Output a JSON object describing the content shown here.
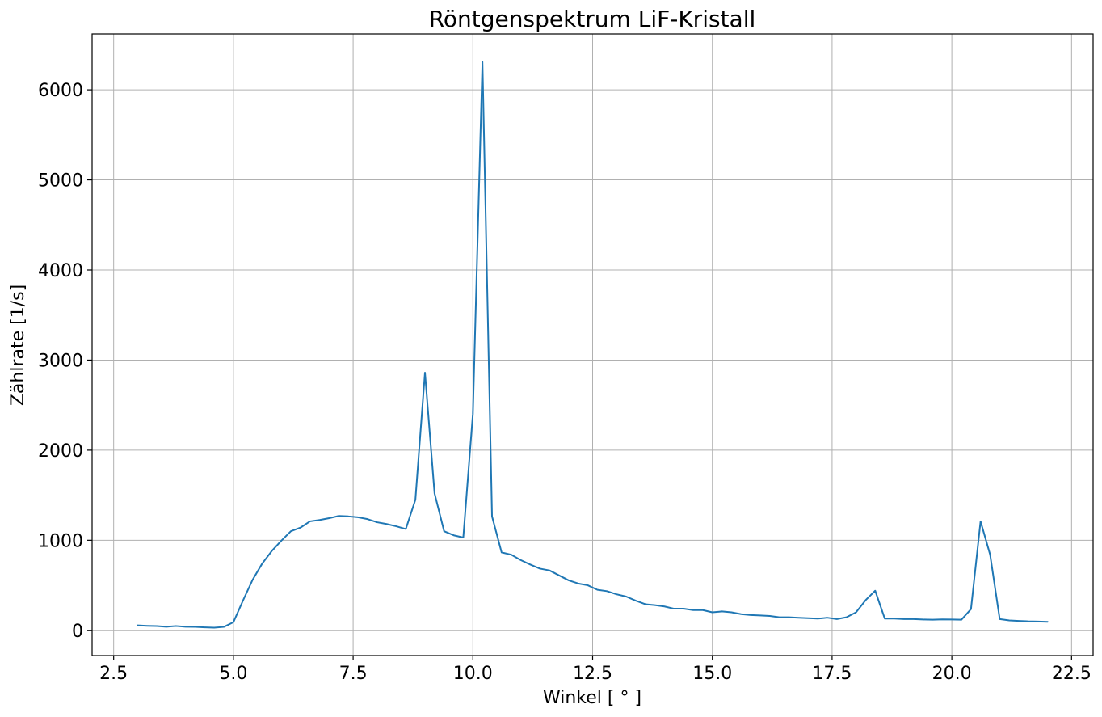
{
  "chart_data": {
    "type": "line",
    "title": "Röntgenspektrum LiF-Kristall",
    "xlabel": "Winkel [$^\\circ$]",
    "xlabel_display": "Winkel [ ° ]",
    "ylabel": "Zählrate [1/s]",
    "xlim": [
      2.05,
      22.95
    ],
    "ylim": [
      -280,
      6620
    ],
    "xticks": [
      2.5,
      5.0,
      7.5,
      10.0,
      12.5,
      15.0,
      17.5,
      20.0,
      22.5
    ],
    "xtick_labels": [
      "2.5",
      "5.0",
      "7.5",
      "10.0",
      "12.5",
      "15.0",
      "17.5",
      "20.0",
      "22.5"
    ],
    "yticks": [
      0,
      1000,
      2000,
      3000,
      4000,
      5000,
      6000
    ],
    "ytick_labels": [
      "0",
      "1000",
      "2000",
      "3000",
      "4000",
      "5000",
      "6000"
    ],
    "grid": true,
    "line_color": "#1f77b4",
    "series": [
      {
        "x": [
          3.0,
          3.2,
          3.4,
          3.6,
          3.8,
          4.0,
          4.2,
          4.4,
          4.6,
          4.8,
          5.0,
          5.2,
          5.4,
          5.6,
          5.8,
          6.0,
          6.2,
          6.4,
          6.6,
          6.8,
          7.0,
          7.2,
          7.4,
          7.6,
          7.8,
          8.0,
          8.2,
          8.4,
          8.6,
          8.8,
          9.0,
          9.2,
          9.4,
          9.6,
          9.8,
          10.0,
          10.2,
          10.4,
          10.6,
          10.8,
          11.0,
          11.2,
          11.4,
          11.6,
          11.8,
          12.0,
          12.2,
          12.4,
          12.6,
          12.8,
          13.0,
          13.2,
          13.4,
          13.6,
          13.8,
          14.0,
          14.2,
          14.4,
          14.6,
          14.8,
          15.0,
          15.2,
          15.4,
          15.6,
          15.8,
          16.0,
          16.2,
          16.4,
          16.6,
          16.8,
          17.0,
          17.2,
          17.4,
          17.6,
          17.8,
          18.0,
          18.2,
          18.4,
          18.6,
          18.8,
          19.0,
          19.2,
          19.4,
          19.6,
          19.8,
          20.0,
          20.2,
          20.4,
          20.6,
          20.8,
          21.0,
          21.2,
          21.4,
          21.6,
          21.8,
          22.0
        ],
        "y": [
          55,
          50,
          47,
          40,
          48,
          40,
          38,
          33,
          30,
          38,
          90,
          330,
          560,
          740,
          880,
          995,
          1100,
          1140,
          1210,
          1225,
          1245,
          1270,
          1265,
          1255,
          1235,
          1200,
          1180,
          1155,
          1125,
          1450,
          2860,
          1520,
          1100,
          1055,
          1030,
          2400,
          6310,
          1265,
          865,
          840,
          780,
          730,
          685,
          665,
          610,
          555,
          520,
          500,
          450,
          435,
          400,
          375,
          330,
          290,
          280,
          265,
          240,
          240,
          225,
          225,
          200,
          210,
          200,
          180,
          170,
          165,
          160,
          145,
          145,
          140,
          135,
          130,
          140,
          125,
          145,
          200,
          335,
          440,
          130,
          130,
          125,
          125,
          120,
          118,
          122,
          120,
          118,
          235,
          1210,
          840,
          125,
          110,
          105,
          100,
          98,
          95
        ]
      }
    ]
  }
}
